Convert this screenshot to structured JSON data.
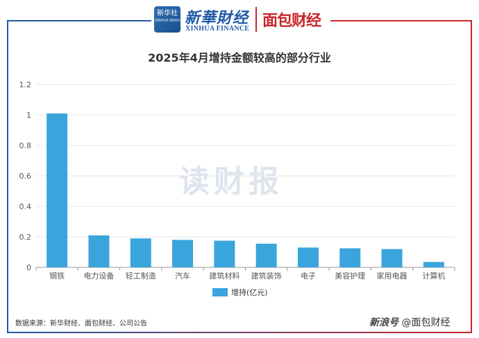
{
  "header": {
    "xinhua_logo_text": "新华社",
    "xinhua_logo_sub": "XINHUA NEWS",
    "xinhua_finance_cn": "新華財经",
    "xinhua_finance_en": "XINHUA FINANCE",
    "mianbao_brand": "面包财经"
  },
  "watermark": "读财报",
  "footer": {
    "source": "数据来源：新华财经、面包财经、公司公告",
    "platform": "新浪号",
    "account": "@面包财经"
  },
  "colors": {
    "bar": "#3aa4dc",
    "frame_blue": "#1f5aa6",
    "frame_red": "#c9252c"
  },
  "chart_data": {
    "type": "bar",
    "title": "2025年4月增持金额较高的部分行业",
    "categories": [
      "钢铁",
      "电力设备",
      "轻工制造",
      "汽车",
      "建筑材料",
      "建筑装饰",
      "电子",
      "美容护理",
      "家用电器",
      "计算机"
    ],
    "series": [
      {
        "name": "增持(亿元)",
        "values": [
          1.01,
          0.21,
          0.19,
          0.18,
          0.175,
          0.155,
          0.13,
          0.125,
          0.12,
          0.035
        ]
      }
    ],
    "ylim": [
      0,
      1.2
    ],
    "yticks": [
      "0",
      "0.2",
      "0.4",
      "0.6",
      "0.8",
      "1",
      "1.2"
    ],
    "grid": true,
    "legend_position": "bottom"
  }
}
